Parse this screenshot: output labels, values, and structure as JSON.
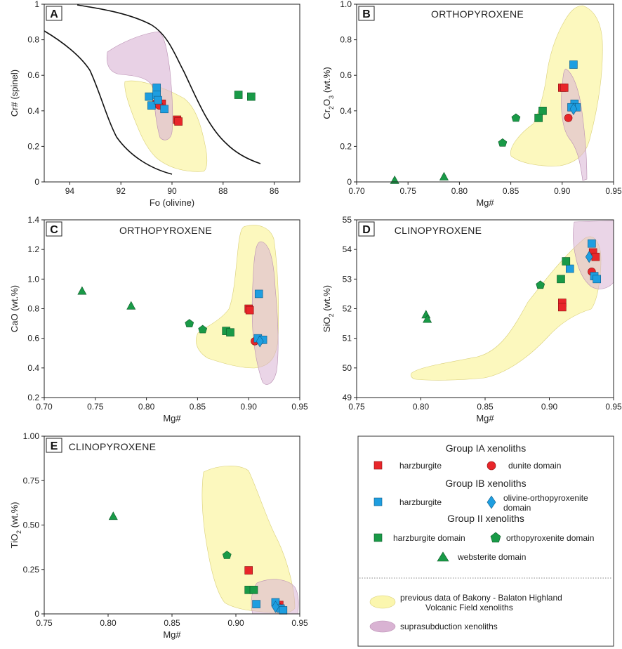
{
  "colors": {
    "groupIA": "#e8262a",
    "groupIB": "#1e9ee0",
    "groupII": "#199a47",
    "field_yellow": "#fbf6ae",
    "field_pink": "#d9b3d3",
    "overlap_orange": "#e7c592"
  },
  "legend": {
    "group_IA_title": "Group IA xenoliths",
    "group_IB_title": "Group IB xenoliths",
    "group_II_title": "Group II xenoliths",
    "items": {
      "ia_harzburgite": "harzburgite",
      "ia_dunite": "dunite domain",
      "ib_harzburgite": "harzburgite",
      "ib_olopx_line1": "olivine-orthopyroxenite",
      "ib_olopx_line2": "domain",
      "ii_harzburgite": "harzburgite domain",
      "ii_orthopyroxenite": "orthopyroxenite domain",
      "ii_websterite": "websterite domain",
      "field_line1": "previous data of Bakony - Balaton Highland",
      "field_line2": "Volcanic Field xenoliths",
      "supra": "suprasubduction xenoliths"
    }
  },
  "chart_data": [
    {
      "panel": "A",
      "type": "scatter",
      "title": "",
      "xlabel": "Fo (olivine)",
      "ylabel": "Cr# (spinel)",
      "xlim": [
        95,
        85
      ],
      "ylim": [
        0,
        1.0
      ],
      "xticks": [
        94,
        92,
        90,
        88,
        86
      ],
      "yticks": [
        0,
        0.2,
        0.4,
        0.6,
        0.8,
        1.0
      ],
      "series": [
        {
          "name": "Group IA harzburgite",
          "marker": "square",
          "group": "IA",
          "points": [
            [
              89.8,
              0.35
            ],
            [
              89.75,
              0.34
            ],
            [
              90.6,
              0.44
            ],
            [
              90.4,
              0.44
            ]
          ]
        },
        {
          "name": "Group IA dunite domain",
          "marker": "circle",
          "group": "IA",
          "points": [
            [
              90.5,
              0.43
            ]
          ]
        },
        {
          "name": "Group IB harzburgite",
          "marker": "square",
          "group": "IB",
          "points": [
            [
              90.6,
              0.53
            ],
            [
              90.6,
              0.49
            ],
            [
              90.9,
              0.48
            ],
            [
              90.8,
              0.43
            ],
            [
              90.3,
              0.41
            ],
            [
              90.55,
              0.46
            ]
          ]
        },
        {
          "name": "Group II harzburgite domain",
          "marker": "square",
          "group": "II",
          "points": [
            [
              87.4,
              0.49
            ],
            [
              86.9,
              0.48
            ]
          ]
        }
      ]
    },
    {
      "panel": "B",
      "type": "scatter",
      "title": "ORTHOPYROXENE",
      "xlabel": "Mg#",
      "ylabel": "Cr2O3 (wt.%)",
      "xlim": [
        0.7,
        0.95
      ],
      "ylim": [
        0,
        1.0
      ],
      "xticks": [
        "0.70",
        "0.75",
        "0.80",
        "0.85",
        "0.90",
        "0.95"
      ],
      "yticks": [
        "0",
        "0.2",
        "0.4",
        "0.6",
        "0.8",
        "1.0"
      ],
      "series": [
        {
          "name": "Group IA harzburgite",
          "marker": "square",
          "group": "IA",
          "points": [
            [
              0.9,
              0.53
            ],
            [
              0.902,
              0.53
            ]
          ]
        },
        {
          "name": "Group IA dunite domain",
          "marker": "circle",
          "group": "IA",
          "points": [
            [
              0.906,
              0.36
            ]
          ]
        },
        {
          "name": "Group IB harzburgite",
          "marker": "square",
          "group": "IB",
          "points": [
            [
              0.911,
              0.66
            ],
            [
              0.912,
              0.44
            ],
            [
              0.914,
              0.42
            ],
            [
              0.909,
              0.42
            ]
          ]
        },
        {
          "name": "Group IB olivine-orthopyroxenite domain",
          "marker": "diamond",
          "group": "IB",
          "points": [
            [
              0.911,
              0.41
            ]
          ]
        },
        {
          "name": "Group II harzburgite domain",
          "marker": "square",
          "group": "II",
          "points": [
            [
              0.881,
              0.4
            ],
            [
              0.877,
              0.36
            ]
          ]
        },
        {
          "name": "Group II orthopyroxenite domain",
          "marker": "pentagon",
          "group": "II",
          "points": [
            [
              0.855,
              0.36
            ],
            [
              0.842,
              0.22
            ]
          ]
        },
        {
          "name": "Group II websterite domain",
          "marker": "triangle",
          "group": "II",
          "points": [
            [
              0.737,
              0.01
            ],
            [
              0.785,
              0.03
            ]
          ]
        }
      ]
    },
    {
      "panel": "C",
      "type": "scatter",
      "title": "ORTHOPYROXENE",
      "xlabel": "Mg#",
      "ylabel": "CaO (wt.%)",
      "xlim": [
        0.7,
        0.95
      ],
      "ylim": [
        0.2,
        1.4
      ],
      "xticks": [
        "0.70",
        "0.75",
        "0.80",
        "0.85",
        "0.90",
        "0.95"
      ],
      "yticks": [
        "0.2",
        "0.4",
        "0.6",
        "0.8",
        "1.0",
        "1.2",
        "1.4"
      ],
      "series": [
        {
          "name": "Group IA harzburgite",
          "marker": "square",
          "group": "IA",
          "points": [
            [
              0.9,
              0.8
            ],
            [
              0.901,
              0.79
            ],
            [
              0.912,
              0.59
            ]
          ]
        },
        {
          "name": "Group IA dunite domain",
          "marker": "circle",
          "group": "IA",
          "points": [
            [
              0.906,
              0.58
            ]
          ]
        },
        {
          "name": "Group IB harzburgite",
          "marker": "square",
          "group": "IB",
          "points": [
            [
              0.91,
              0.9
            ],
            [
              0.909,
              0.6
            ],
            [
              0.914,
              0.59
            ]
          ]
        },
        {
          "name": "Group IB olivine-orthopyroxenite domain",
          "marker": "diamond",
          "group": "IB",
          "points": [
            [
              0.911,
              0.58
            ]
          ]
        },
        {
          "name": "Group II harzburgite domain",
          "marker": "square",
          "group": "II",
          "points": [
            [
              0.878,
              0.65
            ],
            [
              0.882,
              0.64
            ]
          ]
        },
        {
          "name": "Group II orthopyroxenite domain",
          "marker": "pentagon",
          "group": "II",
          "points": [
            [
              0.842,
              0.7
            ],
            [
              0.855,
              0.66
            ]
          ]
        },
        {
          "name": "Group II websterite domain",
          "marker": "triangle",
          "group": "II",
          "points": [
            [
              0.737,
              0.92
            ],
            [
              0.785,
              0.82
            ]
          ]
        }
      ]
    },
    {
      "panel": "D",
      "type": "scatter",
      "title": "CLINOPYROXENE",
      "xlabel": "Mg#",
      "ylabel": "SiO2 (wt.%)",
      "xlim": [
        0.75,
        0.95
      ],
      "ylim": [
        49,
        55
      ],
      "xticks": [
        "0.75",
        "0.80",
        "0.85",
        "0.90",
        "0.95"
      ],
      "yticks": [
        "49",
        "50",
        "51",
        "52",
        "53",
        "54",
        "55"
      ],
      "series": [
        {
          "name": "Group IA harzburgite",
          "marker": "square",
          "group": "IA",
          "points": [
            [
              0.91,
              52.2
            ],
            [
              0.91,
              52.05
            ],
            [
              0.934,
              53.9
            ],
            [
              0.936,
              53.75
            ]
          ]
        },
        {
          "name": "Group IA dunite domain",
          "marker": "circle",
          "group": "IA",
          "points": [
            [
              0.933,
              53.25
            ]
          ]
        },
        {
          "name": "Group IB harzburgite",
          "marker": "square",
          "group": "IB",
          "points": [
            [
              0.933,
              54.2
            ],
            [
              0.916,
              53.35
            ],
            [
              0.935,
              53.1
            ],
            [
              0.937,
              53.0
            ]
          ]
        },
        {
          "name": "Group IB olivine-orthopyroxenite domain",
          "marker": "diamond",
          "group": "IB",
          "points": [
            [
              0.931,
              53.75
            ]
          ]
        },
        {
          "name": "Group II harzburgite domain",
          "marker": "square",
          "group": "II",
          "points": [
            [
              0.913,
              53.6
            ],
            [
              0.909,
              53.0
            ]
          ]
        },
        {
          "name": "Group II orthopyroxenite domain",
          "marker": "pentagon",
          "group": "II",
          "points": [
            [
              0.893,
              52.8
            ]
          ]
        },
        {
          "name": "Group II websterite domain",
          "marker": "triangle",
          "group": "II",
          "points": [
            [
              0.804,
              51.8
            ],
            [
              0.805,
              51.65
            ]
          ]
        }
      ]
    },
    {
      "panel": "E",
      "type": "scatter",
      "title": "CLINOPYROXENE",
      "xlabel": "Mg#",
      "ylabel": "TiO2 (wt.%)",
      "xlim": [
        0.75,
        0.95
      ],
      "ylim": [
        0,
        1.0
      ],
      "xticks": [
        "0.75",
        "0.80",
        "0.85",
        "0.90",
        "0.95"
      ],
      "yticks": [
        "0",
        "0.25",
        "0.50",
        "0.75",
        "1.00"
      ],
      "series": [
        {
          "name": "Group IA harzburgite",
          "marker": "square",
          "group": "IA",
          "points": [
            [
              0.91,
              0.245
            ],
            [
              0.934,
              0.05
            ]
          ]
        },
        {
          "name": "Group IA dunite domain",
          "marker": "circle",
          "group": "IA",
          "points": [
            [
              0.933,
              0.04
            ]
          ]
        },
        {
          "name": "Group IB harzburgite",
          "marker": "square",
          "group": "IB",
          "points": [
            [
              0.916,
              0.055
            ],
            [
              0.931,
              0.065
            ],
            [
              0.935,
              0.03
            ],
            [
              0.937,
              0.02
            ]
          ]
        },
        {
          "name": "Group IB olivine-orthopyroxenite domain",
          "marker": "diamond",
          "group": "IB",
          "points": [
            [
              0.931,
              0.04
            ]
          ]
        },
        {
          "name": "Group II harzburgite domain",
          "marker": "square",
          "group": "II",
          "points": [
            [
              0.91,
              0.135
            ],
            [
              0.914,
              0.135
            ]
          ]
        },
        {
          "name": "Group II orthopyroxenite domain",
          "marker": "pentagon",
          "group": "II",
          "points": [
            [
              0.893,
              0.33
            ]
          ]
        },
        {
          "name": "Group II websterite domain",
          "marker": "triangle",
          "group": "II",
          "points": [
            [
              0.804,
              0.55
            ]
          ]
        }
      ]
    }
  ]
}
